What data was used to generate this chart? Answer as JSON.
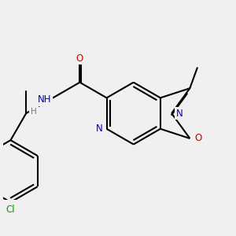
{
  "bg_color": "#f0f0f0",
  "bond_lw": 1.5,
  "colors": {
    "C": "#000000",
    "N": "#0000cc",
    "O": "#cc0000",
    "Cl": "#009900"
  },
  "fs": 8.5
}
